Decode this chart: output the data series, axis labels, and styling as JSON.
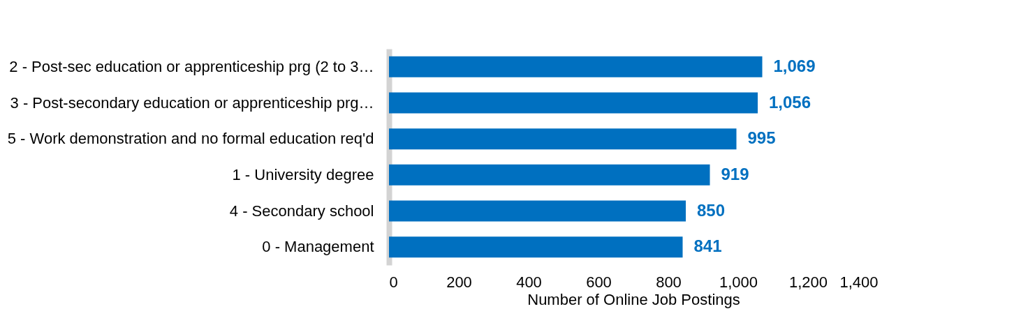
{
  "chart_data": {
    "type": "bar",
    "orientation": "horizontal",
    "xlabel": "Number of Online Job Postings",
    "categories": [
      "2 - Post-sec education or apprenticeship prg (2 to 3…",
      "3 - Post-secondary education or apprenticeship prg…",
      "5 - Work demonstration and no formal education req'd",
      "1 - University degree",
      "4 - Secondary school",
      "0 - Management"
    ],
    "values": [
      1069,
      1056,
      995,
      919,
      850,
      841
    ],
    "color": "#0070c0",
    "xlim": [
      0,
      1400
    ],
    "xticks": [
      0,
      200,
      400,
      600,
      800,
      {
        "value": 1000,
        "label": "1,000"
      },
      {
        "value": 1200,
        "label": "1,200"
      },
      {
        "value": 1400,
        "label": "1,400"
      }
    ],
    "value_labels": [
      "1,069",
      "1,056",
      "995",
      "919",
      "850",
      "841"
    ],
    "grid": false
  }
}
